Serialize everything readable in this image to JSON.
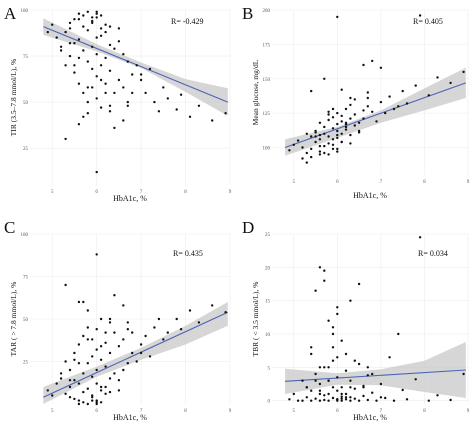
{
  "chart_data": [
    {
      "type": "scatter",
      "panel_letter": "A",
      "ylabel": "TIR (3.5–7.8 mmol/L), %",
      "xlabel": "HbA1c, %",
      "annotation": "R= -0.429",
      "xlim": [
        4.5,
        9.0
      ],
      "ylim": [
        5,
        100
      ],
      "xticks": [
        5,
        6,
        7,
        8,
        9
      ],
      "xtick_labels": [
        "5",
        "6",
        "7",
        "8",
        "9"
      ],
      "yticks": [
        25,
        50,
        75,
        100
      ],
      "ytick_labels": [
        "25",
        "50",
        "75",
        "100"
      ],
      "grid": true,
      "colors": {
        "point": "#111111",
        "line": "#4a63b5",
        "band": "#c8c8c8"
      },
      "fit": {
        "x": [
          4.8,
          8.95
        ],
        "y": [
          91,
          50
        ]
      },
      "band": {
        "x": [
          4.8,
          6.0,
          7.0,
          8.0,
          8.95
        ],
        "upper": [
          95.5,
          81.5,
          71.5,
          62.5,
          57.5
        ],
        "lower": [
          86.5,
          77.5,
          68.5,
          55.5,
          42.5
        ]
      },
      "x": [
        4.9,
        5.0,
        5.1,
        5.2,
        5.3,
        5.3,
        5.4,
        5.4,
        5.5,
        5.5,
        5.6,
        5.6,
        5.6,
        5.7,
        5.7,
        5.7,
        5.8,
        5.8,
        5.8,
        5.9,
        5.9,
        5.9,
        6.0,
        6.0,
        6.0,
        6.0,
        6.1,
        6.1,
        6.1,
        6.2,
        6.2,
        6.2,
        6.3,
        6.3,
        6.3,
        6.4,
        6.4,
        6.5,
        6.5,
        6.6,
        6.6,
        6.7,
        6.7,
        6.8,
        6.9,
        7.0,
        7.1,
        7.2,
        7.3,
        7.5,
        7.6,
        7.8,
        8.1,
        8.3,
        8.6,
        8.9,
        5.6,
        5.7,
        5.8,
        5.9,
        6.0,
        5.5,
        5.4,
        6.1,
        6.0,
        5.9,
        6.2,
        6.3,
        6.5,
        5.8,
        5.7,
        6.4,
        5.3,
        5.2,
        6.8,
        6.6,
        7.0,
        7.4,
        5.5,
        5.6,
        6.1,
        5.9,
        6.0,
        6.2,
        6.3,
        5.6,
        5.8,
        6.1,
        6.7,
        7.9,
        5.4,
        6.0
      ],
      "y": [
        88,
        92,
        85,
        80,
        70,
        88,
        90,
        75,
        82,
        66,
        95,
        84,
        60,
        91,
        78,
        55,
        89,
        72,
        50,
        93,
        68,
        58,
        96,
        85,
        76,
        52,
        90,
        70,
        62,
        88,
        74,
        60,
        81,
        67,
        45,
        79,
        55,
        83,
        62,
        76,
        58,
        72,
        48,
        65,
        70,
        62,
        55,
        68,
        50,
        58,
        52,
        46,
        42,
        48,
        40,
        44,
        98,
        97,
        99,
        96,
        98,
        95,
        93,
        97,
        99,
        94,
        92,
        91,
        90,
        44,
        42,
        36,
        30,
        78,
        55,
        40,
        65,
        45,
        70,
        74,
        86,
        80,
        64,
        55,
        48,
        38,
        58,
        47,
        50,
        54,
        82,
        12
      ]
    },
    {
      "type": "scatter",
      "panel_letter": "B",
      "ylabel": "Mean glucose, mg/dL",
      "xlabel": "HbA1c, %",
      "annotation": "R= 0.405",
      "xlim": [
        4.5,
        9.0
      ],
      "ylim": [
        80,
        200
      ],
      "xticks": [
        5,
        6,
        7,
        8,
        9
      ],
      "xtick_labels": [
        "5",
        "6",
        "7",
        "8",
        "9"
      ],
      "yticks": [
        100,
        125,
        150,
        175,
        200
      ],
      "ytick_labels": [
        "100",
        "125",
        "150",
        "175",
        "200"
      ],
      "grid": true,
      "colors": {
        "point": "#111111",
        "line": "#4a63b5",
        "band": "#c8c8c8"
      },
      "fit": {
        "x": [
          4.8,
          8.95
        ],
        "y": [
          100,
          147
        ]
      },
      "band": {
        "x": [
          4.8,
          6.0,
          7.0,
          8.0,
          8.95
        ],
        "upper": [
          106,
          115,
          127,
          143,
          158
        ],
        "lower": [
          94,
          107,
          118,
          127,
          136
        ]
      },
      "x": [
        4.9,
        5.0,
        5.1,
        5.2,
        5.3,
        5.3,
        5.4,
        5.4,
        5.5,
        5.5,
        5.6,
        5.6,
        5.6,
        5.7,
        5.7,
        5.7,
        5.8,
        5.8,
        5.8,
        5.9,
        5.9,
        5.9,
        6.0,
        6.0,
        6.0,
        6.0,
        6.1,
        6.1,
        6.1,
        6.2,
        6.2,
        6.2,
        6.3,
        6.3,
        6.3,
        6.4,
        6.4,
        6.5,
        6.5,
        6.6,
        6.6,
        6.7,
        6.7,
        6.8,
        6.9,
        7.0,
        7.1,
        7.2,
        7.3,
        7.5,
        7.6,
        7.8,
        8.1,
        8.3,
        8.6,
        8.9,
        5.6,
        5.7,
        5.8,
        5.9,
        6.0,
        5.5,
        5.4,
        6.1,
        6.0,
        5.9,
        6.2,
        6.3,
        6.5,
        5.8,
        5.7,
        6.4,
        5.3,
        5.2,
        6.8,
        6.6,
        7.0,
        7.4,
        5.5,
        5.6,
        6.1,
        5.9,
        6.0,
        6.2,
        6.3,
        5.6,
        5.8,
        6.1,
        6.7,
        7.9,
        5.4,
        6.0
      ],
      "y": [
        98,
        102,
        105,
        100,
        110,
        96,
        108,
        99,
        112,
        104,
        106,
        95,
        118,
        110,
        101,
        115,
        103,
        120,
        108,
        114,
        99,
        122,
        107,
        117,
        112,
        125,
        110,
        119,
        104,
        113,
        128,
        118,
        109,
        121,
        131,
        116,
        124,
        118,
        112,
        127,
        121,
        130,
        140,
        126,
        119,
        133,
        125,
        137,
        128,
        141,
        132,
        145,
        138,
        151,
        147,
        155,
        97,
        96,
        95,
        102,
        99,
        108,
        93,
        104,
        97,
        106,
        115,
        103,
        111,
        124,
        150,
        135,
        89,
        92,
        163,
        160,
        158,
        130,
        111,
        101,
        123,
        128,
        109,
        117,
        136,
        109,
        126,
        142,
        136,
        196,
        141,
        195
      ]
    },
    {
      "type": "scatter",
      "panel_letter": "C",
      "ylabel": "TAR ( > 7.8 mmol/L), %",
      "xlabel": "HbA1c, %",
      "annotation": "R= 0.435",
      "xlim": [
        4.5,
        9.0
      ],
      "ylim": [
        0,
        100
      ],
      "xticks": [
        5,
        6,
        7,
        8,
        9
      ],
      "xtick_labels": [
        "5",
        "6",
        "7",
        "8",
        "9"
      ],
      "yticks": [
        25,
        50,
        75,
        100
      ],
      "ytick_labels": [
        "25",
        "50",
        "75",
        "100"
      ],
      "grid": true,
      "colors": {
        "point": "#111111",
        "line": "#4a63b5",
        "band": "#c8c8c8"
      },
      "fit": {
        "x": [
          4.8,
          8.95
        ],
        "y": [
          4,
          54
        ]
      },
      "band": {
        "x": [
          4.8,
          6.0,
          7.0,
          8.0,
          8.95
        ],
        "upper": [
          10,
          22,
          33,
          46,
          60
        ],
        "lower": [
          0,
          16,
          26,
          35,
          46
        ]
      },
      "x": [
        4.9,
        5.0,
        5.1,
        5.2,
        5.3,
        5.3,
        5.4,
        5.4,
        5.5,
        5.5,
        5.6,
        5.6,
        5.6,
        5.7,
        5.7,
        5.7,
        5.8,
        5.8,
        5.8,
        5.9,
        5.9,
        5.9,
        6.0,
        6.0,
        6.0,
        6.0,
        6.1,
        6.1,
        6.1,
        6.2,
        6.2,
        6.2,
        6.3,
        6.3,
        6.3,
        6.4,
        6.4,
        6.5,
        6.5,
        6.6,
        6.6,
        6.7,
        6.7,
        6.8,
        6.9,
        7.0,
        7.1,
        7.2,
        7.3,
        7.5,
        7.6,
        7.8,
        8.1,
        8.3,
        8.6,
        8.9,
        5.6,
        5.7,
        5.8,
        5.9,
        6.0,
        5.5,
        5.4,
        6.1,
        6.0,
        5.9,
        6.2,
        6.3,
        6.5,
        5.8,
        5.7,
        6.4,
        5.3,
        5.2,
        6.8,
        6.6,
        7.0,
        7.4,
        5.5,
        5.6,
        6.1,
        5.9,
        6.0,
        6.2,
        6.3,
        5.6,
        5.8,
        6.1,
        6.7,
        7.9,
        5.4,
        6.0
      ],
      "y": [
        8,
        5,
        12,
        15,
        25,
        6,
        10,
        20,
        14,
        30,
        2,
        12,
        35,
        7,
        18,
        40,
        9,
        24,
        45,
        4,
        28,
        38,
        2,
        12,
        20,
        44,
        8,
        26,
        34,
        10,
        22,
        36,
        15,
        30,
        50,
        18,
        42,
        14,
        34,
        20,
        38,
        24,
        48,
        30,
        25,
        35,
        40,
        28,
        45,
        38,
        42,
        50,
        55,
        48,
        58,
        54,
        0,
        1,
        0,
        2,
        1,
        3,
        4,
        1,
        0,
        5,
        6,
        7,
        8,
        55,
        60,
        64,
        70,
        18,
        42,
        58,
        30,
        50,
        26,
        24,
        10,
        16,
        32,
        42,
        48,
        60,
        38,
        50,
        44,
        44,
        14,
        88
      ]
    },
    {
      "type": "scatter",
      "panel_letter": "D",
      "ylabel": "TBR ( < 3.5 mmol/L), %",
      "xlabel": "HbA1c, %",
      "annotation": "R= 0.034",
      "xlim": [
        4.5,
        9.0
      ],
      "ylim": [
        -0.5,
        25
      ],
      "xticks": [
        5,
        6,
        7,
        8,
        9
      ],
      "xtick_labels": [
        "5",
        "6",
        "7",
        "8",
        "9"
      ],
      "yticks": [
        0,
        5,
        10,
        15,
        20,
        25
      ],
      "ytick_labels": [
        "0",
        "5",
        "10",
        "15",
        "20",
        "25"
      ],
      "grid": true,
      "colors": {
        "point": "#111111",
        "line": "#4a63b5",
        "band": "#c8c8c8"
      },
      "fit": {
        "x": [
          4.8,
          8.95
        ],
        "y": [
          2.9,
          4.6
        ]
      },
      "band": {
        "x": [
          4.8,
          6.0,
          7.0,
          8.0,
          8.95
        ],
        "upper": [
          4.8,
          4.1,
          4.7,
          6.0,
          8.8
        ],
        "lower": [
          1.0,
          2.4,
          2.3,
          1.3,
          0.4
        ]
      },
      "x": [
        4.9,
        5.0,
        5.1,
        5.2,
        5.3,
        5.3,
        5.4,
        5.4,
        5.5,
        5.5,
        5.6,
        5.6,
        5.6,
        5.7,
        5.7,
        5.7,
        5.8,
        5.8,
        5.8,
        5.9,
        5.9,
        5.9,
        6.0,
        6.0,
        6.0,
        6.0,
        6.1,
        6.1,
        6.1,
        6.2,
        6.2,
        6.2,
        6.3,
        6.3,
        6.3,
        6.4,
        6.4,
        6.5,
        6.5,
        6.6,
        6.6,
        6.7,
        6.7,
        6.8,
        6.9,
        7.0,
        7.1,
        7.2,
        7.3,
        7.5,
        7.6,
        7.8,
        8.1,
        8.3,
        8.6,
        8.9,
        5.6,
        5.7,
        5.8,
        5.9,
        6.0,
        5.5,
        5.4,
        6.1,
        6.0,
        5.9,
        6.2,
        6.3,
        6.5,
        5.8,
        5.7,
        6.4,
        5.3,
        5.2,
        6.8,
        6.6,
        7.0,
        7.4,
        5.5,
        5.6,
        6.1,
        5.9,
        6.0,
        6.2,
        6.3,
        5.6,
        5.8,
        6.1,
        6.7,
        7.9,
        5.4,
        6.0
      ],
      "y": [
        0.2,
        1.0,
        0.0,
        3.0,
        2.0,
        0.5,
        1.5,
        0.0,
        4.0,
        0.3,
        1.0,
        0.0,
        2.5,
        0.8,
        5.0,
        0.1,
        3.0,
        0.0,
        1.0,
        2.0,
        0.4,
        6.0,
        0.2,
        1.5,
        0.0,
        3.5,
        0.6,
        2.0,
        0.0,
        4.5,
        0.2,
        1.0,
        0.5,
        3.0,
        0.0,
        1.8,
        0.3,
        5.5,
        0.0,
        2.2,
        0.7,
        0.1,
        3.8,
        1.2,
        0.0,
        2.5,
        0.4,
        6.5,
        0.0,
        1.6,
        0.2,
        3.2,
        0.0,
        0.8,
        0.1,
        4.0,
        20.0,
        18.0,
        12.0,
        10.0,
        14.0,
        16.5,
        8.0,
        9.0,
        13.0,
        11.0,
        7.0,
        15.0,
        17.5,
        5.0,
        19.5,
        6.0,
        2.0,
        0.0,
        4.0,
        2.0,
        0.5,
        10.0,
        3.0,
        5.0,
        1.0,
        8.0,
        6.5,
        0.5,
        2.0,
        1.5,
        3.0,
        0.3,
        5.0,
        24.5,
        7.0,
        0.2
      ]
    }
  ]
}
